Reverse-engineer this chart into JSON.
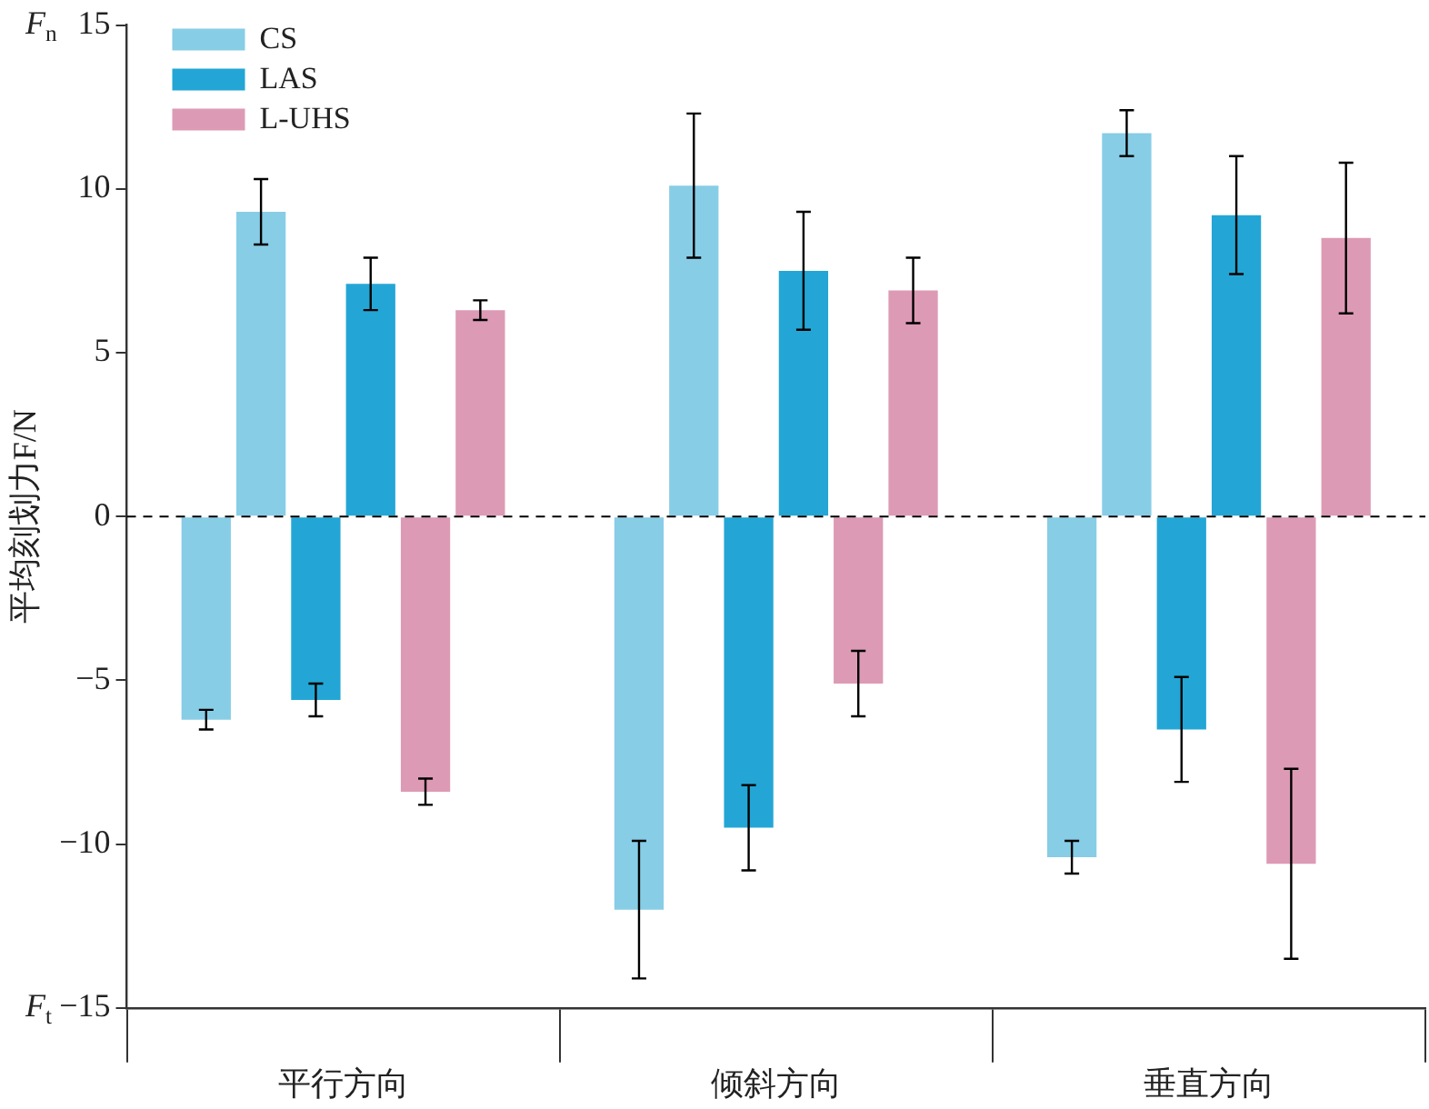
{
  "chart_data": {
    "type": "bar",
    "ylabel": "平均刻划力F/N",
    "categories": [
      "平行方向",
      "倾斜方向",
      "垂直方向"
    ],
    "series": [
      {
        "name": "CS",
        "color": "#87cde6",
        "values": [
          -6.2,
          -12,
          -10.4
        ],
        "errors": [
          0.3,
          2.1,
          0.5
        ]
      },
      {
        "color": "#87cde6",
        "values": [
          9.3,
          10.1,
          11.7
        ],
        "errors": [
          1.0,
          2.2,
          0.7
        ]
      },
      {
        "name": "LAS",
        "color": "#23a6d5",
        "values": [
          -5.6,
          -9.5,
          -6.5
        ],
        "errors": [
          0.5,
          1.3,
          1.6
        ]
      },
      {
        "color": "#23a6d5",
        "values": [
          7.1,
          7.5,
          9.2
        ],
        "errors": [
          0.8,
          1.8,
          1.8
        ]
      },
      {
        "name": "L-UHS",
        "color": "#dd9ab5",
        "values": [
          -8.4,
          -5.1,
          -10.6
        ],
        "errors": [
          0.4,
          1.0,
          2.9
        ]
      },
      {
        "color": "#dd9ab5",
        "values": [
          6.3,
          6.9,
          8.5
        ],
        "errors": [
          0.3,
          1.0,
          2.3
        ]
      }
    ],
    "ylim": [
      -15,
      15
    ],
    "yticks": [
      {
        "value": -15,
        "label": "−15"
      },
      {
        "value": -10,
        "label": "−10"
      },
      {
        "value": -5,
        "label": "−5"
      },
      0,
      5,
      10,
      15
    ],
    "ref_lines": [
      {
        "axis": "y",
        "value": 0,
        "color": "#000000",
        "line_style": "dashed"
      }
    ],
    "annotations": [
      "F$_{n}$",
      "F$_{t}$"
    ],
    "legend": "top left",
    "grid": false
  }
}
